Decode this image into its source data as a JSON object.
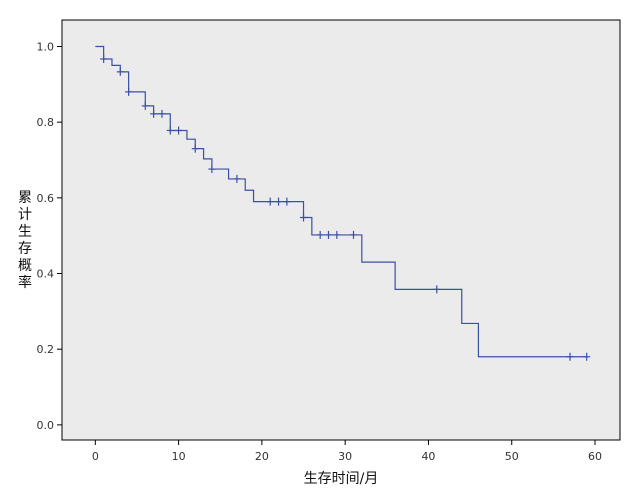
{
  "chart_data": {
    "type": "line",
    "subtype": "kaplan-meier-step",
    "title": "",
    "xlabel": "生存时间/月",
    "ylabel": "累计生存概率",
    "xlim": [
      -4,
      63
    ],
    "ylim": [
      -0.04,
      1.07
    ],
    "x_ticks": [
      "0",
      "10",
      "20",
      "30",
      "40",
      "50",
      "60"
    ],
    "y_ticks": [
      "0.0",
      "0.2",
      "0.4",
      "0.6",
      "0.8",
      "1.0"
    ],
    "grid": false,
    "legend": "none",
    "colors": {
      "line": "#3a4fa8",
      "plot_bg": "#ebebeb",
      "frame": "#000000"
    },
    "series": [
      {
        "steps": [
          [
            0,
            1.0
          ],
          [
            1,
            0.967
          ],
          [
            2,
            0.95
          ],
          [
            3,
            0.933
          ],
          [
            4,
            0.88
          ],
          [
            6,
            0.843
          ],
          [
            7,
            0.822
          ],
          [
            9,
            0.778
          ],
          [
            11,
            0.755
          ],
          [
            12,
            0.73
          ],
          [
            13,
            0.703
          ],
          [
            14,
            0.676
          ],
          [
            16,
            0.65
          ],
          [
            18,
            0.62
          ],
          [
            19,
            0.59
          ],
          [
            25,
            0.548
          ],
          [
            26,
            0.502
          ],
          [
            32,
            0.43
          ],
          [
            36,
            0.358
          ],
          [
            44,
            0.268
          ],
          [
            46,
            0.18
          ],
          [
            59,
            0.18
          ]
        ],
        "censored": [
          [
            1,
            0.967
          ],
          [
            3,
            0.933
          ],
          [
            4,
            0.88
          ],
          [
            6,
            0.843
          ],
          [
            7,
            0.822
          ],
          [
            8,
            0.822
          ],
          [
            9,
            0.778
          ],
          [
            10,
            0.778
          ],
          [
            12,
            0.73
          ],
          [
            14,
            0.676
          ],
          [
            17,
            0.65
          ],
          [
            21,
            0.59
          ],
          [
            22,
            0.59
          ],
          [
            23,
            0.59
          ],
          [
            25,
            0.548
          ],
          [
            27,
            0.502
          ],
          [
            28,
            0.502
          ],
          [
            29,
            0.502
          ],
          [
            31,
            0.502
          ],
          [
            41,
            0.358
          ],
          [
            57,
            0.18
          ],
          [
            59,
            0.18
          ]
        ]
      }
    ]
  }
}
